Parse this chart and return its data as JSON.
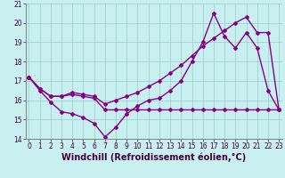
{
  "xlabel": "Windchill (Refroidissement éolien,°C)",
  "bg_color": "#c8f0f0",
  "line_color": "#880088",
  "hours": [
    0,
    1,
    2,
    3,
    4,
    5,
    6,
    7,
    8,
    9,
    10,
    11,
    12,
    13,
    14,
    15,
    16,
    17,
    18,
    19,
    20,
    21,
    22,
    23
  ],
  "line1": [
    17.2,
    16.5,
    15.9,
    15.4,
    15.3,
    15.1,
    14.8,
    14.1,
    14.6,
    15.3,
    15.7,
    16.0,
    16.1,
    16.5,
    17.0,
    18.0,
    19.0,
    20.5,
    19.3,
    18.7,
    19.5,
    18.7,
    16.5,
    15.5
  ],
  "line2": [
    17.2,
    16.6,
    16.2,
    16.2,
    16.3,
    16.2,
    16.1,
    15.5,
    15.5,
    15.5,
    15.5,
    15.5,
    15.5,
    15.5,
    15.5,
    15.5,
    15.5,
    15.5,
    15.5,
    15.5,
    15.5,
    15.5,
    15.5,
    15.5
  ],
  "line3": [
    17.2,
    16.6,
    16.2,
    16.2,
    16.4,
    16.3,
    16.2,
    15.8,
    16.0,
    16.2,
    16.4,
    16.7,
    17.0,
    17.4,
    17.8,
    18.3,
    18.8,
    19.2,
    19.6,
    20.0,
    20.3,
    19.5,
    19.5,
    15.5
  ],
  "ylim": [
    14,
    21
  ],
  "xlim": [
    0,
    23
  ],
  "grid_color": "#99cccc",
  "marker": "D",
  "markersize": 2.0,
  "linewidth": 1.0,
  "tick_fontsize": 5.5,
  "xlabel_fontsize": 7.0
}
